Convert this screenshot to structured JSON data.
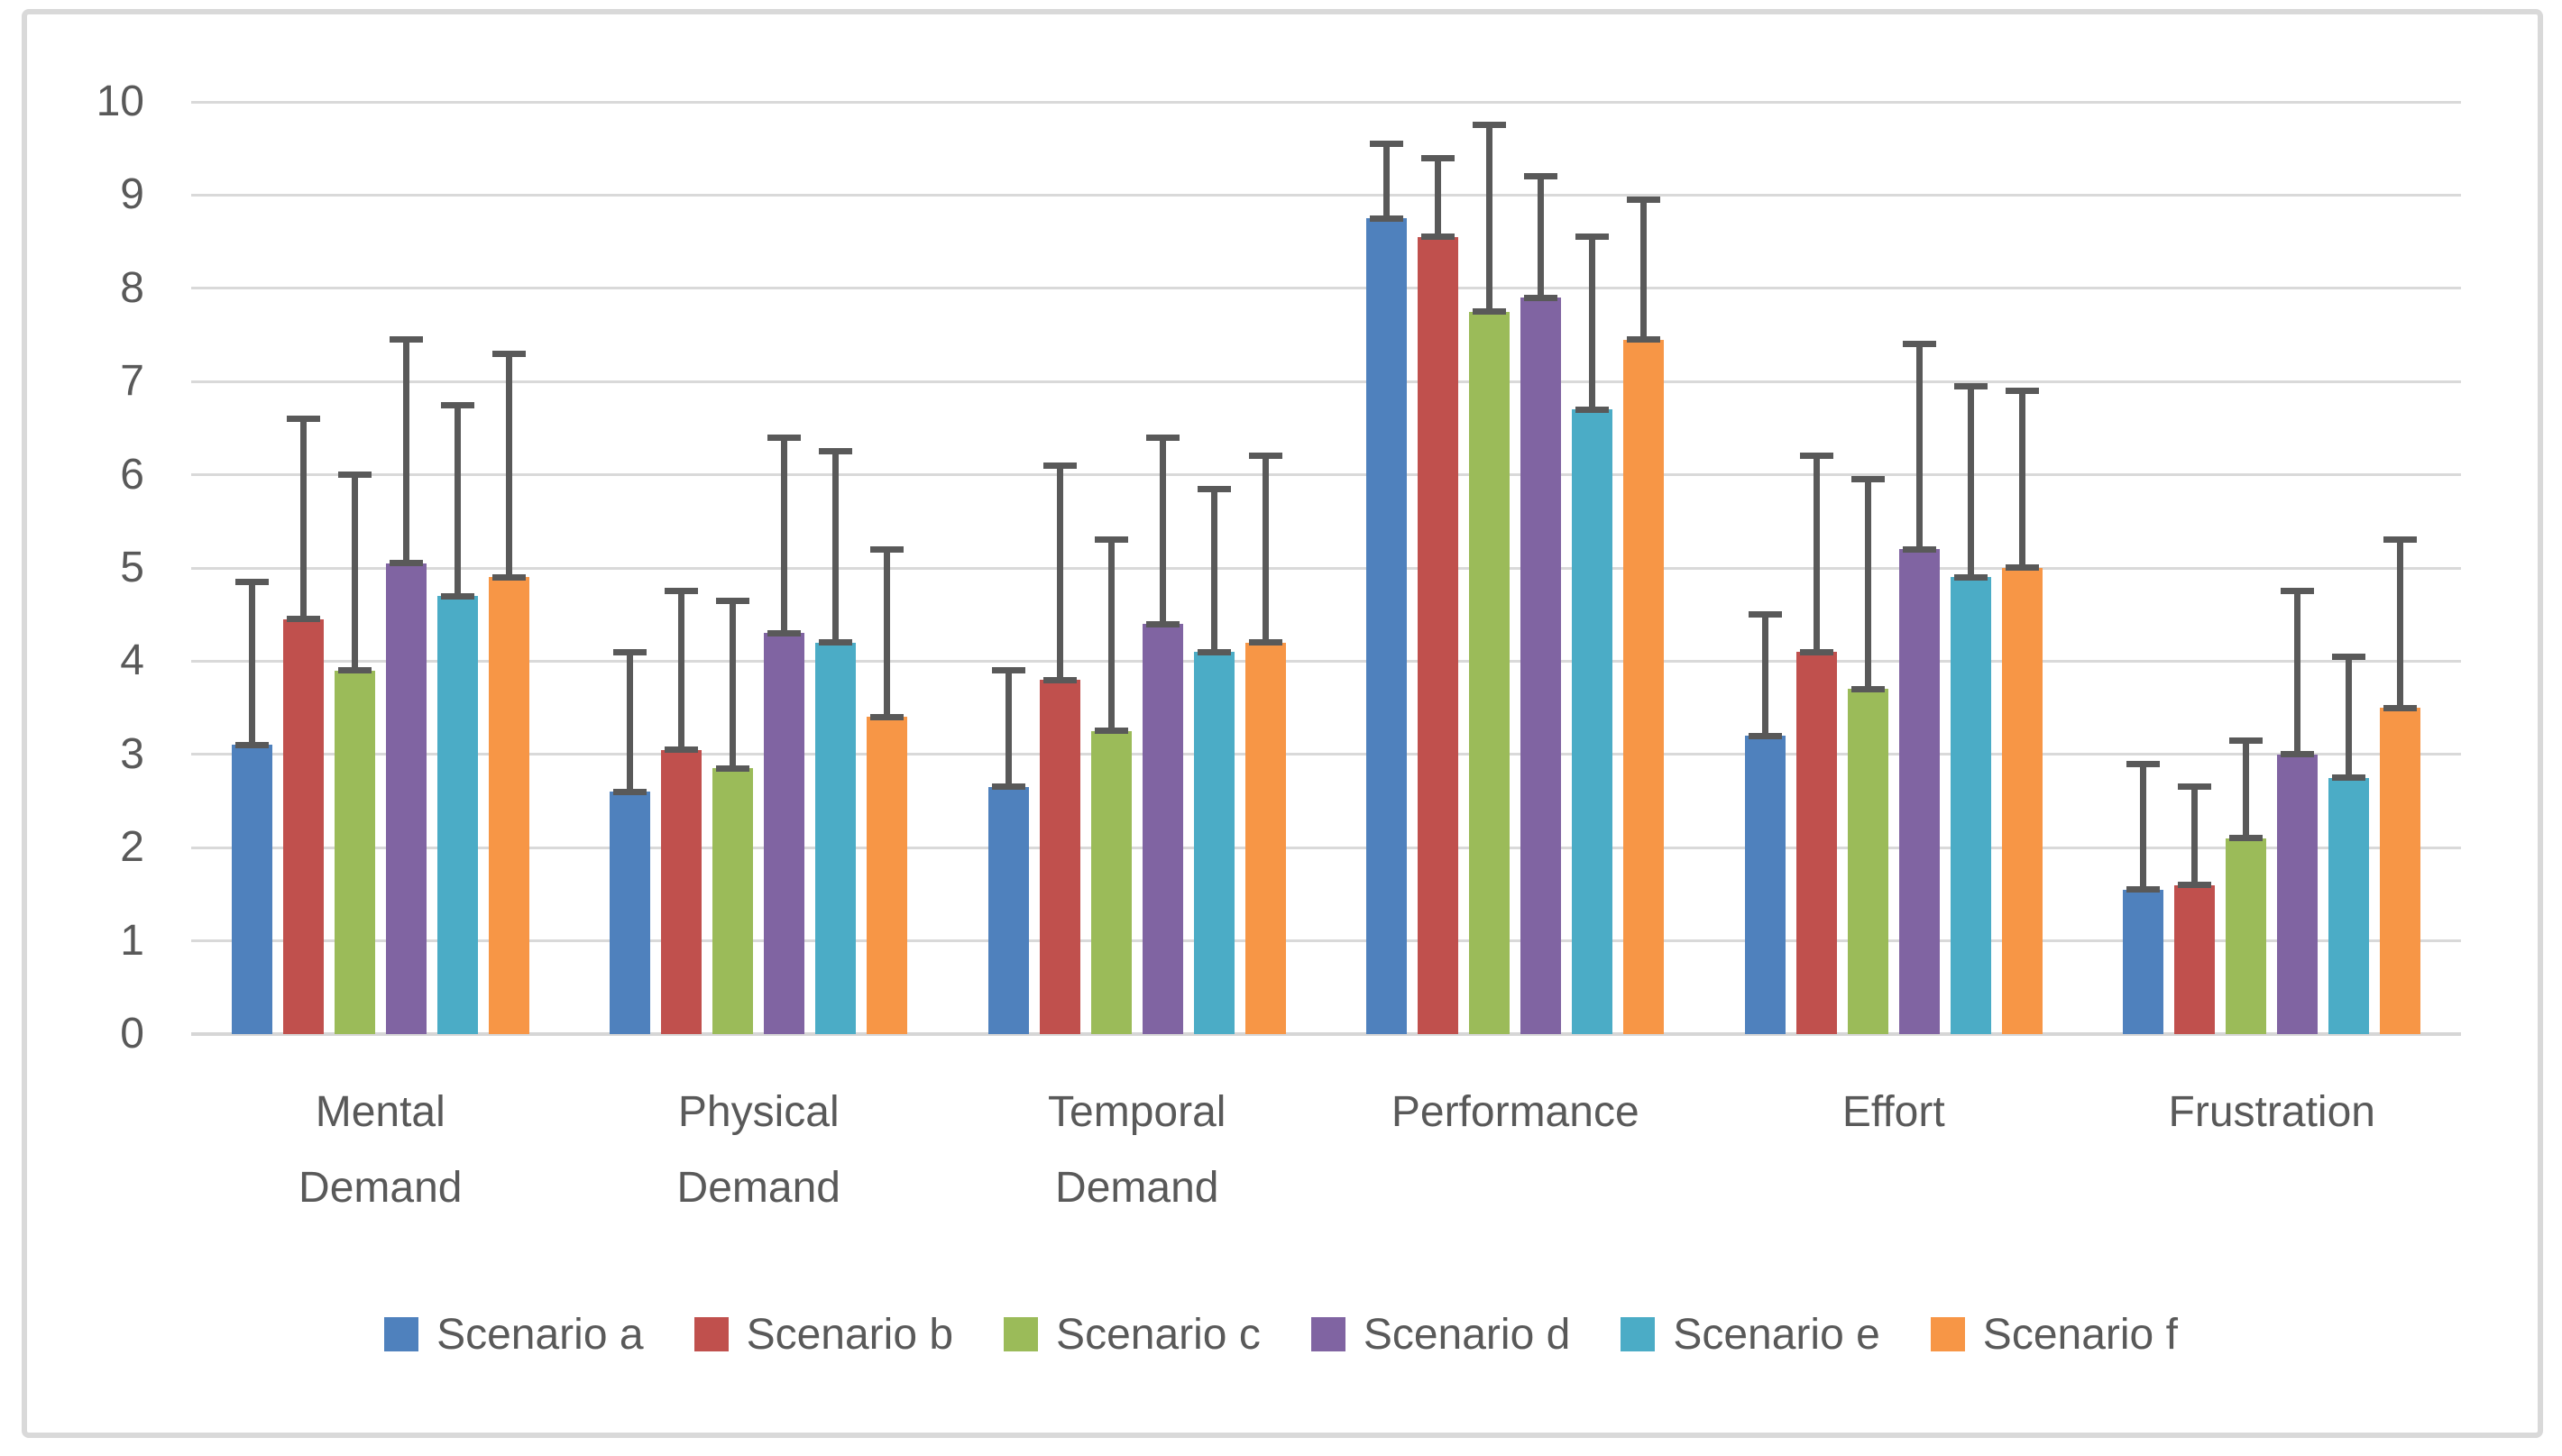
{
  "chart_data": {
    "type": "bar",
    "title": "",
    "categories": [
      "Mental\nDemand",
      "Physical\nDemand",
      "Temporal\nDemand",
      "Performance",
      "Effort",
      "Frustration"
    ],
    "y_ticks": [
      0,
      1,
      2,
      3,
      4,
      5,
      6,
      7,
      8,
      9,
      10
    ],
    "ylim": [
      0,
      10
    ],
    "grid": true,
    "legend_position": "bottom",
    "error_bars": "plus-direction with end caps",
    "series": [
      {
        "name": "Scenario a",
        "color": "#4F81BD",
        "values": [
          3.1,
          2.6,
          2.65,
          8.75,
          3.2,
          1.55
        ],
        "error_plus": [
          1.75,
          1.5,
          1.25,
          0.8,
          1.3,
          1.35
        ]
      },
      {
        "name": "Scenario b",
        "color": "#C0504D",
        "values": [
          4.45,
          3.05,
          3.8,
          8.55,
          4.1,
          1.6
        ],
        "error_plus": [
          2.15,
          1.7,
          2.3,
          0.85,
          2.1,
          1.05
        ]
      },
      {
        "name": "Scenario c",
        "color": "#9BBB59",
        "values": [
          3.9,
          2.85,
          3.25,
          7.75,
          3.7,
          2.1
        ],
        "error_plus": [
          2.1,
          1.8,
          2.05,
          2.0,
          2.25,
          1.05
        ]
      },
      {
        "name": "Scenario d",
        "color": "#8064A2",
        "values": [
          5.05,
          4.3,
          4.4,
          7.9,
          5.2,
          3.0
        ],
        "error_plus": [
          2.4,
          2.1,
          2.0,
          1.3,
          2.2,
          1.75
        ]
      },
      {
        "name": "Scenario e",
        "color": "#4BACC6",
        "values": [
          4.7,
          4.2,
          4.1,
          6.7,
          4.9,
          2.75
        ],
        "error_plus": [
          2.05,
          2.05,
          1.75,
          1.85,
          2.05,
          1.3
        ]
      },
      {
        "name": "Scenario f",
        "color": "#F79646",
        "values": [
          4.9,
          3.4,
          4.2,
          7.45,
          5.0,
          3.5
        ],
        "error_plus": [
          2.4,
          1.8,
          2.0,
          1.5,
          1.9,
          1.8
        ]
      }
    ]
  },
  "colors": {
    "gridline": "#D9D9D9",
    "baseline": "#D6D6D6",
    "axis_text": "#595959",
    "error_bar": "#595959",
    "frame_border": "#D9D9D9",
    "background": "#FFFFFF"
  }
}
